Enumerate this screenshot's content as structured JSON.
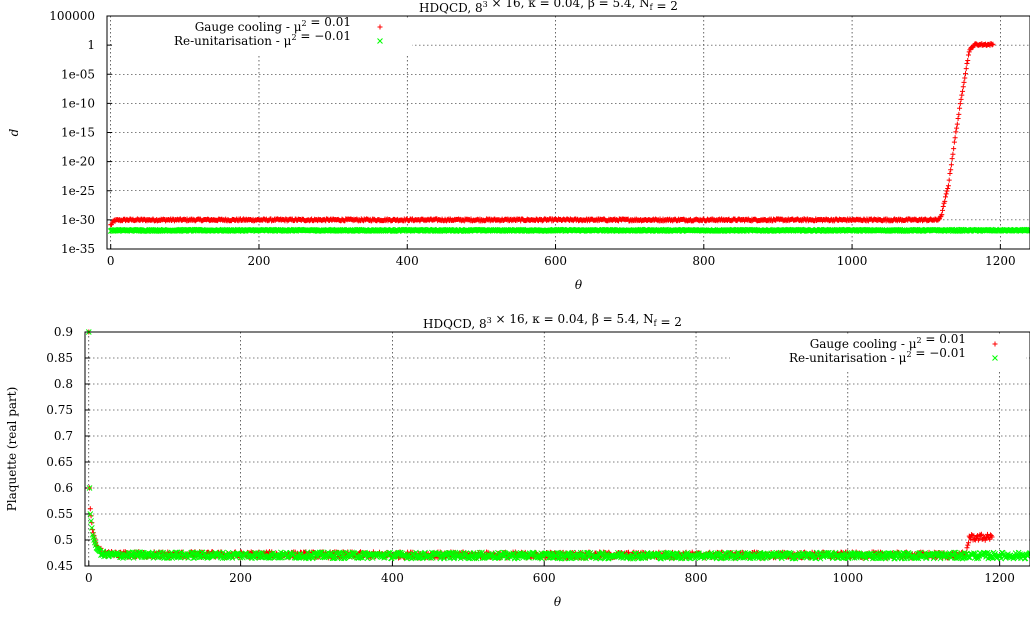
{
  "chart_data": [
    {
      "type": "scatter",
      "title": "HDQCD, 8³ × 16, κ = 0.04, β = 5.4, N_f = 2",
      "xlabel": "θ",
      "ylabel": "d",
      "yscale": "log",
      "xlim": [
        -5,
        1240
      ],
      "ylim_exp": [
        -35,
        5
      ],
      "x_ticks": [
        "0",
        "200",
        "400",
        "600",
        "800",
        "1000",
        "1200"
      ],
      "y_ticks": [
        "100000",
        "1",
        "1e-05",
        "1e-10",
        "1e-15",
        "1e-20",
        "1e-25",
        "1e-30",
        "1e-35"
      ],
      "grid": true,
      "legend_position": "top-left",
      "series": [
        {
          "name": "Gauge cooling - μ² =   0.01",
          "marker": "+",
          "color": "#ff0000",
          "log10_values": [
            [
              0,
              -30.9
            ],
            [
              5,
              -30.1
            ],
            [
              20,
              -30.0
            ],
            [
              400,
              -30.0
            ],
            [
              800,
              -30.0
            ],
            [
              1115,
              -30.0
            ],
            [
              1120,
              -29.5
            ],
            [
              1130,
              -24.0
            ],
            [
              1140,
              -15.0
            ],
            [
              1150,
              -7.0
            ],
            [
              1158,
              -1.0
            ],
            [
              1165,
              0.1
            ],
            [
              1175,
              0.1
            ],
            [
              1190,
              0.1
            ]
          ]
        },
        {
          "name": "Re-unitarisation - μ² = −0.01",
          "marker": "×",
          "color": "#00ff00",
          "log10_values": [
            [
              0,
              -31.8
            ],
            [
              1240,
              -31.8
            ]
          ]
        }
      ]
    },
    {
      "type": "scatter",
      "title": "HDQCD, 8³ × 16, κ = 0.04, β = 5.4, N_f = 2",
      "xlabel": "θ",
      "ylabel": "Plaquette (real part)",
      "xlim": [
        -5,
        1240
      ],
      "ylim": [
        0.45,
        0.9
      ],
      "x_ticks": [
        "0",
        "200",
        "400",
        "600",
        "800",
        "1000",
        "1200"
      ],
      "y_ticks": [
        "0.9",
        "0.85",
        "0.8",
        "0.75",
        "0.7",
        "0.65",
        "0.6",
        "0.55",
        "0.5",
        "0.45"
      ],
      "grid": true,
      "legend_position": "top-right",
      "series": [
        {
          "name": "Gauge cooling - μ² =   0.01",
          "marker": "+",
          "color": "#ff0000",
          "values": [
            [
              0,
              0.9
            ],
            [
              1,
              0.6
            ],
            [
              2,
              0.56
            ],
            [
              5,
              0.52
            ],
            [
              10,
              0.49
            ],
            [
              20,
              0.472
            ],
            [
              600,
              0.471
            ],
            [
              1155,
              0.471
            ],
            [
              1160,
              0.505
            ],
            [
              1175,
              0.505
            ],
            [
              1190,
              0.505
            ]
          ]
        },
        {
          "name": "Re-unitarisation - μ² = −0.01",
          "marker": "×",
          "color": "#00ff00",
          "values": [
            [
              0,
              0.9
            ],
            [
              1,
              0.6
            ],
            [
              2,
              0.55
            ],
            [
              5,
              0.51
            ],
            [
              10,
              0.485
            ],
            [
              20,
              0.471
            ],
            [
              600,
              0.47
            ],
            [
              1240,
              0.47
            ]
          ]
        }
      ]
    }
  ]
}
